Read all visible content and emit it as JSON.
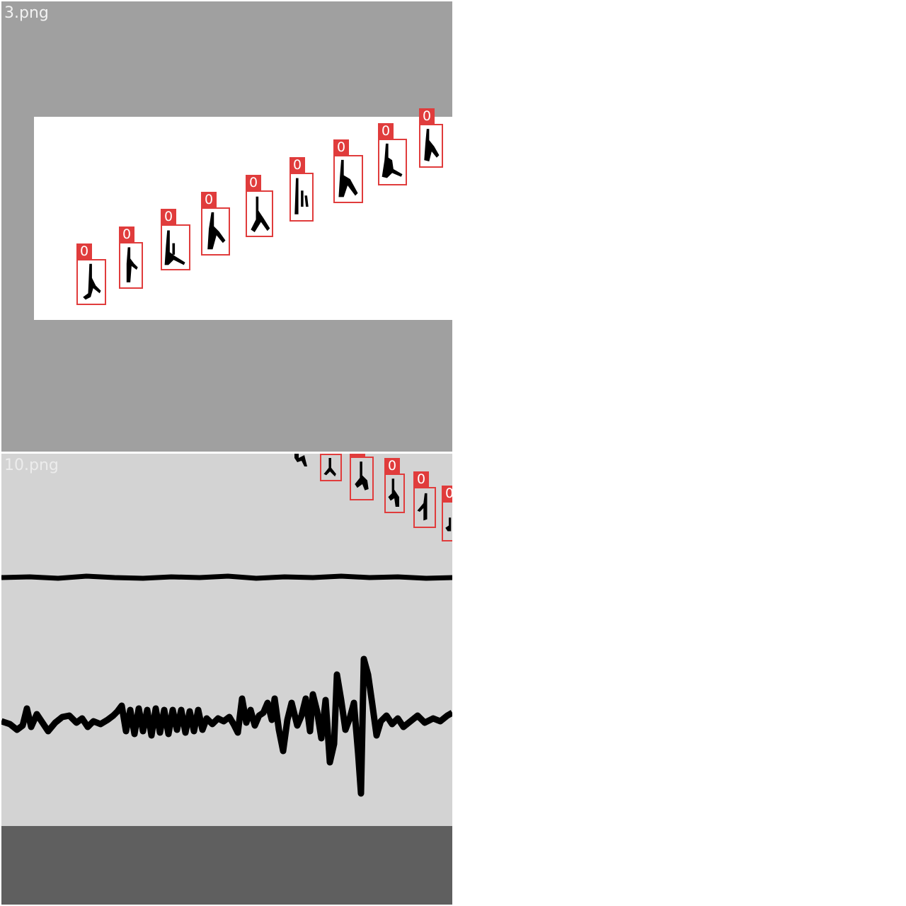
{
  "tiles": [
    {
      "name": "3.png",
      "detections": [
        "0",
        "0",
        "0",
        "0",
        "0",
        "0",
        "0",
        "0",
        "0"
      ]
    },
    {
      "name": "10.png",
      "detections": [
        "0",
        "0",
        "0",
        "0",
        "0"
      ]
    }
  ],
  "colors": {
    "box": "#e03c3c",
    "tile1_bg": "#a0a0a0",
    "tile2_bg": "#d3d3d3",
    "ink": "#000000"
  },
  "icons": {
    "detection_mark": "glyph-icon"
  }
}
